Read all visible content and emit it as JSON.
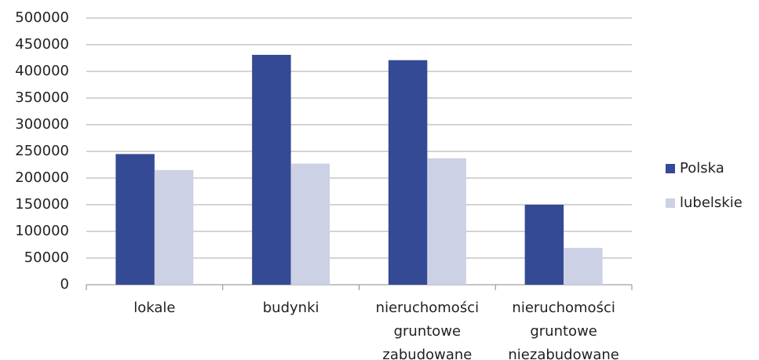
{
  "chart_data": {
    "type": "bar",
    "categories": [
      "lokale",
      "budynki",
      "nieruchomości gruntowe zabudowane",
      "nieruchomości gruntowe niezabudowane"
    ],
    "series": [
      {
        "name": "Polska",
        "color": "#344a94",
        "values": [
          245000,
          431000,
          421000,
          150000
        ]
      },
      {
        "name": "lubelskie",
        "color": "#ccd1e5",
        "values": [
          215000,
          227000,
          237000,
          69000
        ]
      }
    ],
    "ylim": [
      0,
      500000
    ],
    "yticks": [
      0,
      50000,
      100000,
      150000,
      200000,
      250000,
      300000,
      350000,
      400000,
      450000,
      500000
    ],
    "grid": true,
    "legend": "right"
  }
}
